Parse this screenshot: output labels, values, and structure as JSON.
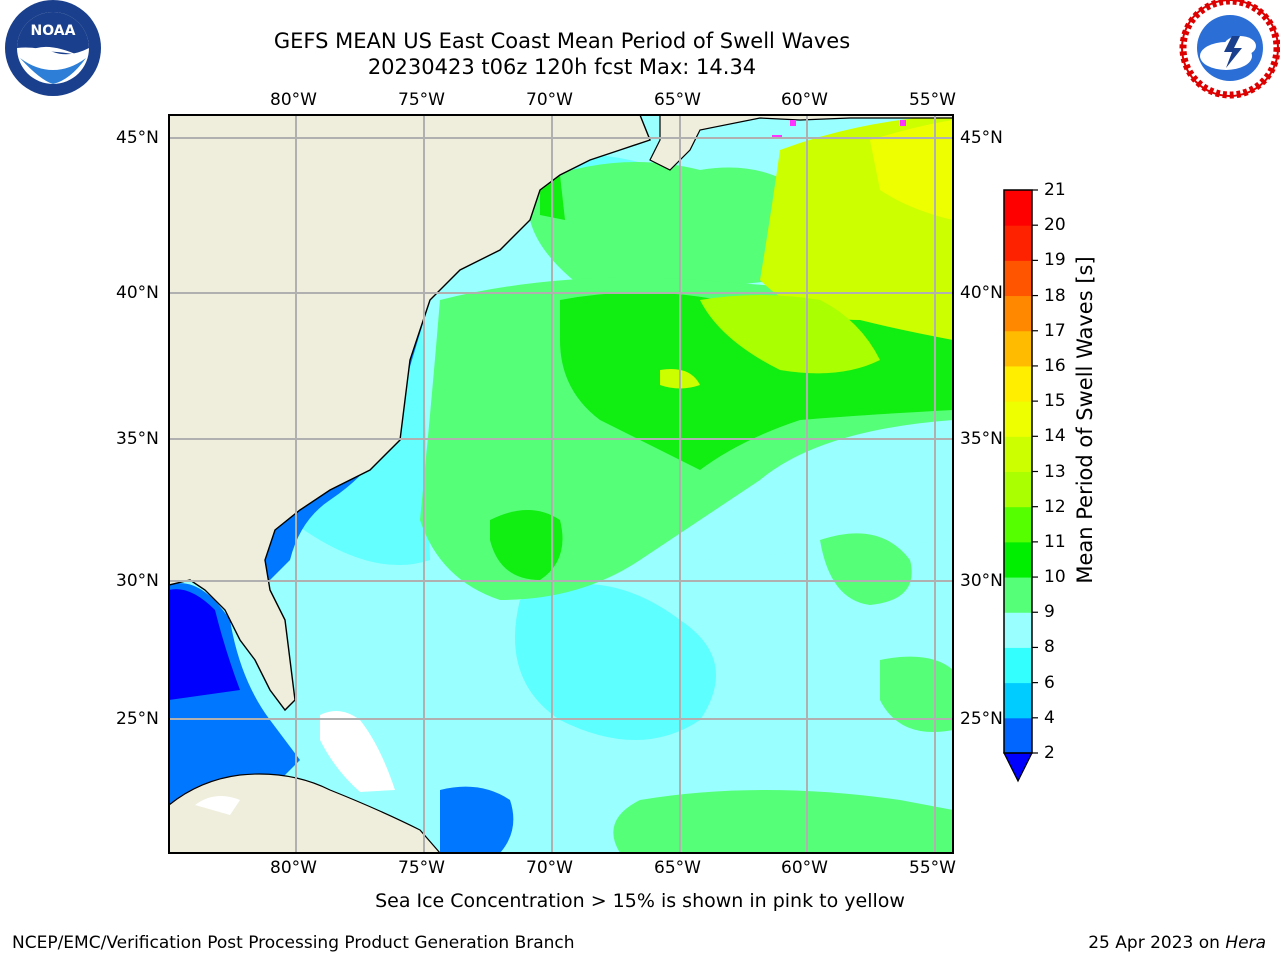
{
  "header": {
    "title_line1": "GEFS MEAN US East Coast Mean Period of Swell Waves",
    "title_line2": "20230423 t06z 120h fcst   Max: 14.34"
  },
  "logos": {
    "left_icon": "noaa-logo",
    "right_icon": "national-weather-service-logo"
  },
  "map": {
    "lon_labels": [
      "80°W",
      "75°W",
      "70°W",
      "65°W",
      "60°W",
      "55°W"
    ],
    "lat_labels": [
      "45°N",
      "40°N",
      "35°N",
      "30°N",
      "25°N"
    ],
    "colors": {
      "land": "#efeedd",
      "ice_mask": "#ffffff",
      "grid": "#b0b0b0",
      "coast": "#000000"
    }
  },
  "colorbar": {
    "label": "Mean Period of Swell Waves [s]",
    "ticks": [
      "2",
      "4",
      "6",
      "8",
      "9",
      "10",
      "11",
      "12",
      "13",
      "14",
      "15",
      "16",
      "17",
      "18",
      "19",
      "20",
      "21"
    ],
    "colors": [
      "#0000ff",
      "#0066ff",
      "#00ccff",
      "#33ffff",
      "#99ffff",
      "#55ff77",
      "#00ee00",
      "#55ff00",
      "#aaff00",
      "#ccff00",
      "#eeff00",
      "#ffee00",
      "#ffbb00",
      "#ff8800",
      "#ff5500",
      "#ff2200",
      "#ff0000"
    ]
  },
  "footer": {
    "note": "Sea Ice Concentration > 15% is shown in pink to yellow",
    "left_credit": "NCEP/EMC/Verification Post Processing Product Generation Branch",
    "right_credit_date": "25 Apr 2023 on ",
    "right_credit_host": "Hera"
  }
}
